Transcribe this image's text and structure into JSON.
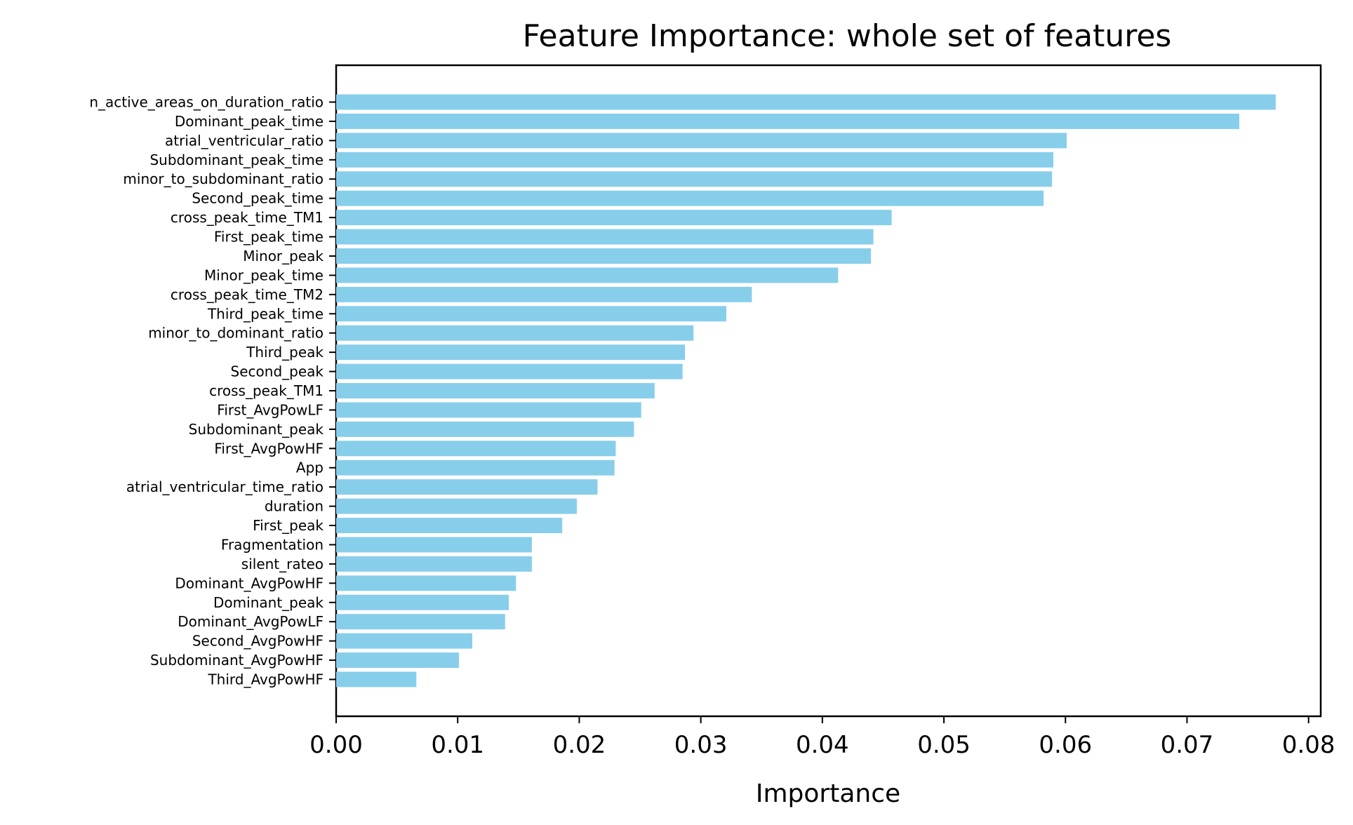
{
  "chart_data": {
    "type": "bar",
    "orientation": "horizontal",
    "title": "Feature Importance: whole set of features",
    "xlabel": "Importance",
    "ylabel": "",
    "xlim": [
      0,
      0.081
    ],
    "xticks": [
      "0.00",
      "0.01",
      "0.02",
      "0.03",
      "0.04",
      "0.05",
      "0.06",
      "0.07",
      "0.08"
    ],
    "grid": false,
    "bar_color": "#87ceeb",
    "categories": [
      "n_active_areas_on_duration_ratio",
      "Dominant_peak_time",
      "atrial_ventricular_ratio",
      "Subdominant_peak_time",
      "minor_to_subdominant_ratio",
      "Second_peak_time",
      "cross_peak_time_TM1",
      "First_peak_time",
      "Minor_peak",
      "Minor_peak_time",
      "cross_peak_time_TM2",
      "Third_peak_time",
      "minor_to_dominant_ratio",
      "Third_peak",
      "Second_peak",
      "cross_peak_TM1",
      "First_AvgPowLF",
      "Subdominant_peak",
      "First_AvgPowHF",
      "App",
      "atrial_ventricular_time_ratio",
      "duration",
      "First_peak",
      "Fragmentation",
      "silent_rateo",
      "Dominant_AvgPowHF",
      "Dominant_peak",
      "Dominant_AvgPowLF",
      "Second_AvgPowHF",
      "Subdominant_AvgPowHF",
      "Third_AvgPowHF"
    ],
    "values": [
      0.0773,
      0.0743,
      0.0601,
      0.059,
      0.0589,
      0.0582,
      0.0457,
      0.0442,
      0.044,
      0.0413,
      0.0342,
      0.0321,
      0.0294,
      0.0287,
      0.0285,
      0.0262,
      0.0251,
      0.0245,
      0.023,
      0.0229,
      0.0215,
      0.0198,
      0.0186,
      0.0161,
      0.0161,
      0.0148,
      0.0142,
      0.0139,
      0.0112,
      0.0101,
      0.0066
    ]
  }
}
